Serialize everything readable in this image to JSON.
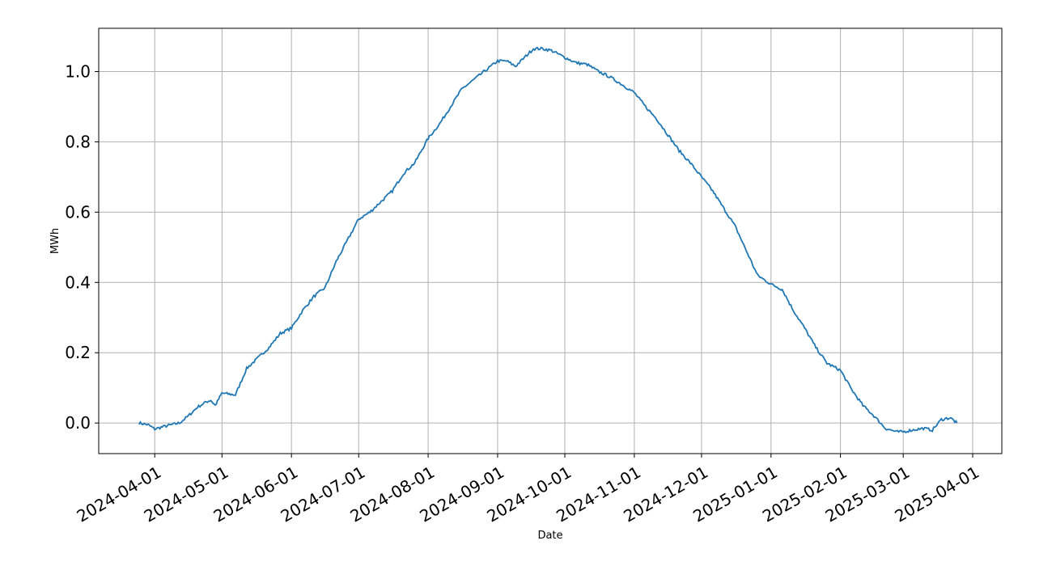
{
  "chart_data": {
    "type": "line",
    "title": "",
    "xlabel": "Date",
    "ylabel": "MWh",
    "grid": true,
    "legend": "none",
    "color": "#1f77b4",
    "xlim": [
      "2024-03-07",
      "2025-04-14"
    ],
    "ylim": [
      -0.087,
      1.123
    ],
    "x_ticks": [
      "2024-04-01",
      "2024-05-01",
      "2024-06-01",
      "2024-07-01",
      "2024-08-01",
      "2024-09-01",
      "2024-10-01",
      "2024-11-01",
      "2024-12-01",
      "2025-01-01",
      "2025-02-01",
      "2025-03-01",
      "2025-04-01"
    ],
    "y_ticks": [
      0.0,
      0.2,
      0.4,
      0.6,
      0.8,
      1.0
    ],
    "y_tick_labels": [
      "0.0",
      "0.2",
      "0.4",
      "0.6",
      "0.8",
      "1.0"
    ],
    "series": [
      {
        "x": [
          "2024-03-25",
          "2024-03-29",
          "2024-04-01",
          "2024-04-05",
          "2024-04-12",
          "2024-04-16",
          "2024-04-20",
          "2024-04-24",
          "2024-04-26",
          "2024-04-28",
          "2024-05-01",
          "2024-05-07",
          "2024-05-12",
          "2024-05-17",
          "2024-05-22",
          "2024-05-27",
          "2024-06-01",
          "2024-06-06",
          "2024-06-11",
          "2024-06-16",
          "2024-06-21",
          "2024-06-26",
          "2024-07-01",
          "2024-07-06",
          "2024-07-11",
          "2024-07-16",
          "2024-07-21",
          "2024-07-26",
          "2024-08-01",
          "2024-08-06",
          "2024-08-11",
          "2024-08-16",
          "2024-08-21",
          "2024-08-26",
          "2024-09-01",
          "2024-09-05",
          "2024-09-09",
          "2024-09-13",
          "2024-09-17",
          "2024-09-21",
          "2024-09-25",
          "2024-10-01",
          "2024-10-06",
          "2024-10-11",
          "2024-10-16",
          "2024-10-21",
          "2024-10-26",
          "2024-11-01",
          "2024-11-06",
          "2024-11-11",
          "2024-11-16",
          "2024-11-21",
          "2024-11-26",
          "2024-12-01",
          "2024-12-06",
          "2024-12-11",
          "2024-12-16",
          "2024-12-21",
          "2024-12-26",
          "2025-01-01",
          "2025-01-06",
          "2025-01-11",
          "2025-01-16",
          "2025-01-21",
          "2025-01-26",
          "2025-02-01",
          "2025-02-06",
          "2025-02-11",
          "2025-02-16",
          "2025-02-21",
          "2025-02-26",
          "2025-03-01",
          "2025-03-05",
          "2025-03-10",
          "2025-03-14",
          "2025-03-18",
          "2025-03-22",
          "2025-03-25"
        ],
        "y": [
          0.0,
          -0.005,
          -0.017,
          -0.01,
          0.0,
          0.02,
          0.045,
          0.06,
          0.065,
          0.05,
          0.085,
          0.08,
          0.155,
          0.185,
          0.215,
          0.255,
          0.27,
          0.32,
          0.36,
          0.385,
          0.46,
          0.52,
          0.58,
          0.6,
          0.63,
          0.66,
          0.71,
          0.74,
          0.81,
          0.85,
          0.9,
          0.95,
          0.975,
          1.0,
          1.03,
          1.03,
          1.015,
          1.04,
          1.065,
          1.065,
          1.06,
          1.04,
          1.025,
          1.02,
          1.0,
          0.985,
          0.965,
          0.94,
          0.9,
          0.865,
          0.82,
          0.775,
          0.74,
          0.7,
          0.66,
          0.61,
          0.56,
          0.49,
          0.42,
          0.395,
          0.38,
          0.32,
          0.27,
          0.215,
          0.17,
          0.15,
          0.095,
          0.05,
          0.02,
          -0.015,
          -0.025,
          -0.025,
          -0.02,
          -0.015,
          -0.02,
          0.01,
          0.015,
          0.0
        ]
      }
    ]
  }
}
